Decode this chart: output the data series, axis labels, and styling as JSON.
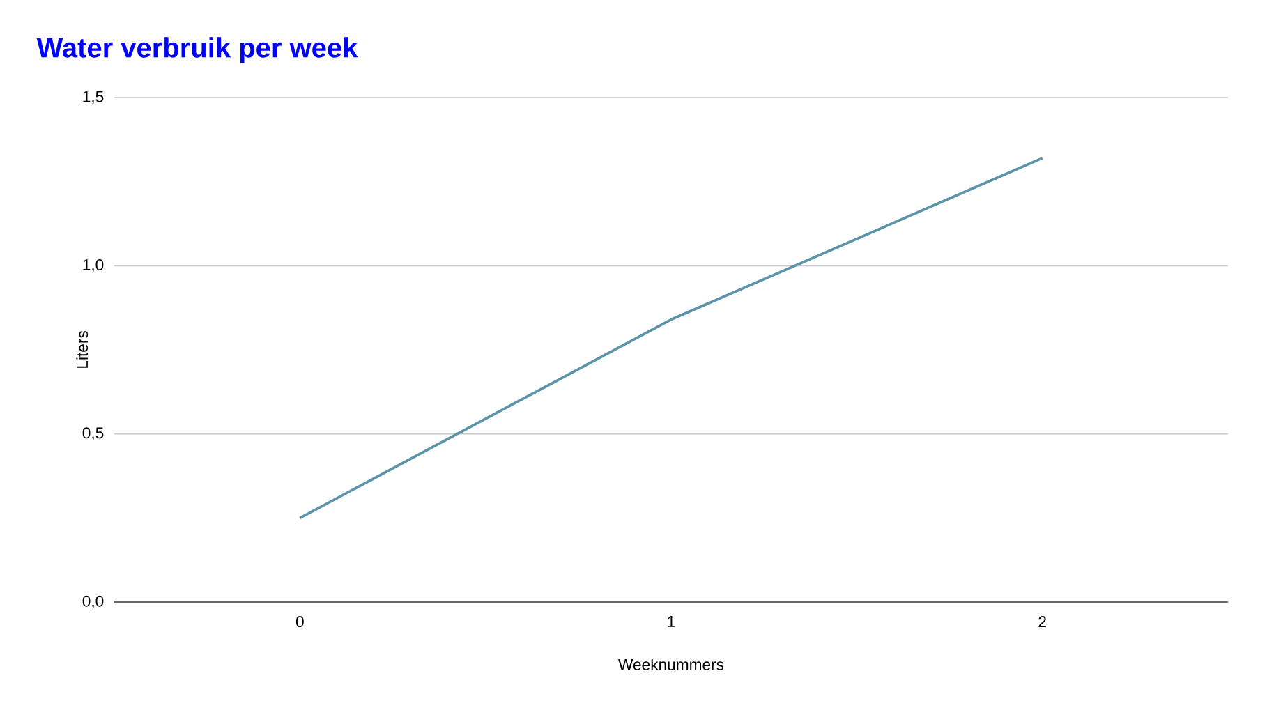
{
  "chart_data": {
    "type": "line",
    "title": "Water verbruik per week",
    "xlabel": "Weeknummers",
    "ylabel": "Liters",
    "x": [
      0,
      1,
      2
    ],
    "series": [
      {
        "color": "#5b93a9",
        "values": [
          0.25,
          0.84,
          1.32
        ]
      }
    ],
    "xlim": [
      -0.5,
      2.5
    ],
    "xticks": [
      0,
      1,
      2
    ],
    "ylim": [
      0,
      1.5
    ],
    "yticks": [
      {
        "value": 0,
        "label": "0,0"
      },
      {
        "value": 0.5,
        "label": "0,5"
      },
      {
        "value": 1.0,
        "label": "1,0"
      },
      {
        "value": 1.5,
        "label": "1,5"
      }
    ],
    "grid": "y",
    "marker": "none",
    "line_style": "solid"
  }
}
